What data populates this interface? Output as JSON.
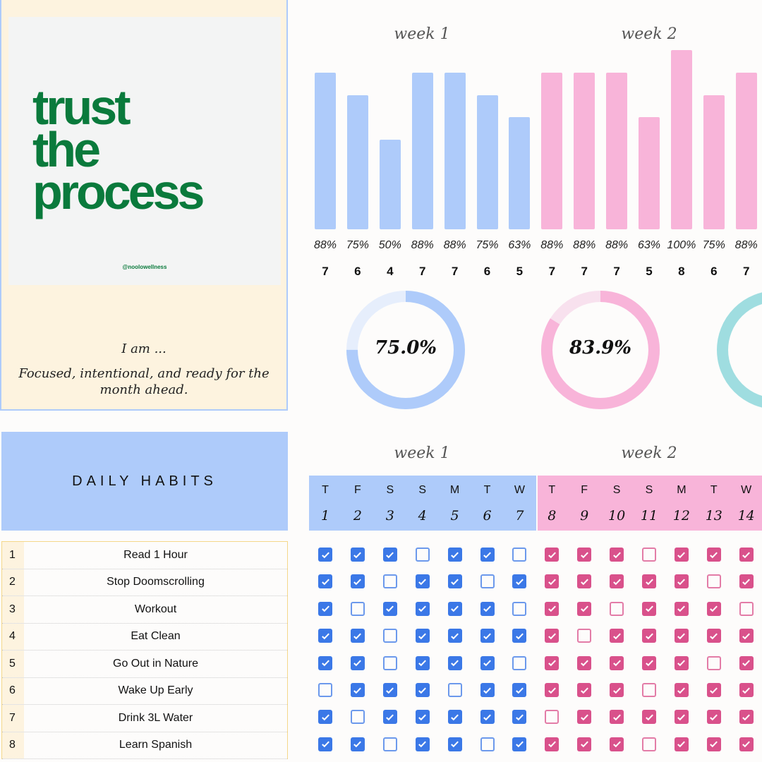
{
  "quote_card": {
    "quote_lines": [
      "trust",
      "the",
      "process"
    ],
    "handle": "@noolowellness",
    "iam": "I am ...",
    "affirmation": "Focused, intentional, and ready for the month ahead."
  },
  "colors": {
    "week1_bar": "#aecbfa",
    "week2_bar": "#f8b4d9",
    "week1_check": "#3b78e7",
    "week2_check": "#d9518b",
    "week3_donut": "#9fdde0",
    "header_blue": "#aecbfa",
    "header_pink": "#f8b4d9",
    "quote_green": "#0a7a3c"
  },
  "chart_data": {
    "type": "bar",
    "weeks": [
      {
        "label": "week 1",
        "percents": [
          "88%",
          "75%",
          "50%",
          "88%",
          "88%",
          "75%",
          "63%"
        ],
        "counts": [
          7,
          6,
          4,
          7,
          7,
          6,
          5
        ]
      },
      {
        "label": "week 2",
        "percents": [
          "88%",
          "88%",
          "88%",
          "63%",
          "100%",
          "75%",
          "88%"
        ],
        "counts": [
          7,
          7,
          7,
          5,
          8,
          6,
          7
        ]
      }
    ],
    "ylim": [
      0,
      8
    ]
  },
  "donuts": [
    {
      "label": "75.0%",
      "value": 75.0
    },
    {
      "label": "83.9%",
      "value": 83.9
    }
  ],
  "habits_title": "DAILY HABITS",
  "grid": {
    "weeks": [
      "week 1",
      "week 2"
    ],
    "day_letters": [
      "T",
      "F",
      "S",
      "S",
      "M",
      "T",
      "W",
      "T",
      "F",
      "S",
      "S",
      "M",
      "T",
      "W"
    ],
    "day_numbers": [
      "1",
      "2",
      "3",
      "4",
      "5",
      "6",
      "7",
      "8",
      "9",
      "10",
      "11",
      "12",
      "13",
      "14"
    ]
  },
  "habits": [
    {
      "n": "1",
      "name": "Read 1 Hour",
      "checks": [
        1,
        1,
        1,
        0,
        1,
        1,
        0,
        1,
        1,
        1,
        0,
        1,
        1,
        1
      ]
    },
    {
      "n": "2",
      "name": "Stop Doomscrolling",
      "checks": [
        1,
        1,
        0,
        1,
        1,
        0,
        1,
        1,
        1,
        1,
        1,
        1,
        0,
        1
      ]
    },
    {
      "n": "3",
      "name": "Workout",
      "checks": [
        1,
        0,
        1,
        1,
        1,
        1,
        0,
        1,
        1,
        0,
        1,
        1,
        1,
        0
      ]
    },
    {
      "n": "4",
      "name": "Eat Clean",
      "checks": [
        1,
        1,
        0,
        1,
        1,
        1,
        1,
        1,
        0,
        1,
        1,
        1,
        1,
        1
      ]
    },
    {
      "n": "5",
      "name": "Go Out in Nature",
      "checks": [
        1,
        1,
        0,
        1,
        1,
        1,
        0,
        1,
        1,
        1,
        1,
        1,
        0,
        1
      ]
    },
    {
      "n": "6",
      "name": "Wake Up Early",
      "checks": [
        0,
        1,
        1,
        1,
        0,
        1,
        1,
        1,
        1,
        1,
        0,
        1,
        1,
        1
      ]
    },
    {
      "n": "7",
      "name": "Drink 3L Water",
      "checks": [
        1,
        0,
        1,
        1,
        1,
        1,
        1,
        0,
        1,
        1,
        1,
        1,
        1,
        1
      ]
    },
    {
      "n": "8",
      "name": "Learn Spanish",
      "checks": [
        1,
        1,
        0,
        1,
        1,
        0,
        1,
        1,
        1,
        1,
        0,
        1,
        1,
        1
      ]
    }
  ]
}
